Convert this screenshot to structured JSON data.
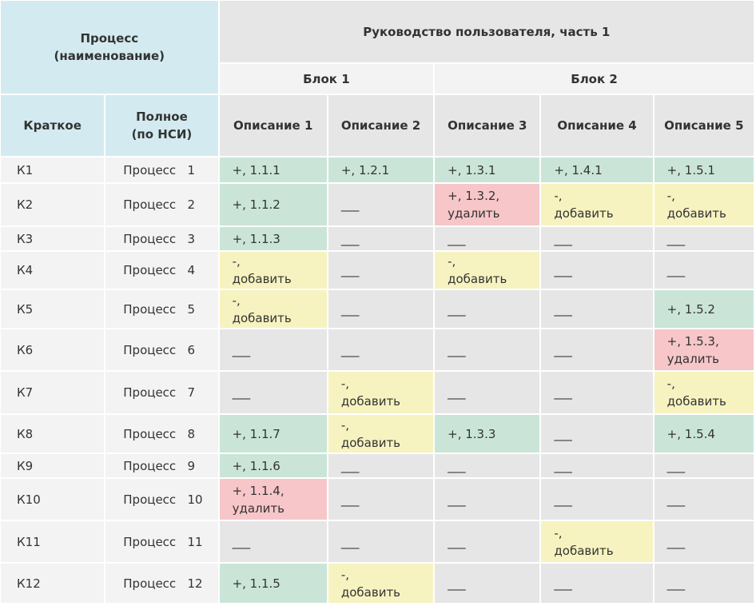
{
  "header": {
    "process": "Процесс\n(наименование)",
    "guide": "Руководство пользователя, часть 1",
    "blocks": [
      "Блок 1",
      "Блок 2"
    ],
    "short": "Краткое",
    "full": "Полное\n(по НСИ)",
    "descriptions": [
      "Описание 1",
      "Описание 2",
      "Описание 3",
      "Описание 4",
      "Описание 5"
    ]
  },
  "rows": [
    {
      "short": "К1",
      "full": "Процесс   1",
      "cells": [
        {
          "text": "+, 1.1.1",
          "color": "#cae5d8"
        },
        {
          "text": "+, 1.2.1",
          "color": "#cae5d8"
        },
        {
          "text": "+, 1.3.1",
          "color": "#cae5d8"
        },
        {
          "text": "+, 1.4.1",
          "color": "#cae5d8"
        },
        {
          "text": "+, 1.5.1",
          "color": "#cae5d8"
        }
      ]
    },
    {
      "short": "К2",
      "full": "Процесс   2",
      "cells": [
        {
          "text": "+, 1.1.2",
          "color": "#cae5d8"
        },
        {
          "text": "___",
          "color": "#e6e6e6"
        },
        {
          "text": "+, 1.3.2,\nудалить",
          "color": "#f6c6c9"
        },
        {
          "text": "-,\nдобавить",
          "color": "#f6f3c0"
        },
        {
          "text": "-,\nдобавить",
          "color": "#f6f3c0"
        }
      ]
    },
    {
      "short": "К3",
      "full": "Процесс   3",
      "cells": [
        {
          "text": "+, 1.1.3",
          "color": "#cae5d8"
        },
        {
          "text": "___",
          "color": "#e6e6e6"
        },
        {
          "text": "___",
          "color": "#e6e6e6"
        },
        {
          "text": "___",
          "color": "#e6e6e6"
        },
        {
          "text": "___",
          "color": "#e6e6e6"
        }
      ]
    },
    {
      "short": "К4",
      "full": "Процесс   4",
      "cells": [
        {
          "text": "-,\nдобавить",
          "color": "#f6f3c0"
        },
        {
          "text": "___",
          "color": "#e6e6e6"
        },
        {
          "text": "-,\nдобавить",
          "color": "#f6f3c0"
        },
        {
          "text": "___",
          "color": "#e6e6e6"
        },
        {
          "text": "___",
          "color": "#e6e6e6"
        }
      ]
    },
    {
      "short": "К5",
      "full": "Процесс   5",
      "cells": [
        {
          "text": "-,\nдобавить",
          "color": "#f6f3c0"
        },
        {
          "text": "___",
          "color": "#e6e6e6"
        },
        {
          "text": "___",
          "color": "#e6e6e6"
        },
        {
          "text": "___",
          "color": "#e6e6e6"
        },
        {
          "text": "+, 1.5.2",
          "color": "#cae5d8"
        }
      ]
    },
    {
      "short": "К6",
      "full": "Процесс   6",
      "cells": [
        {
          "text": "___",
          "color": "#e6e6e6"
        },
        {
          "text": "___",
          "color": "#e6e6e6"
        },
        {
          "text": "___",
          "color": "#e6e6e6"
        },
        {
          "text": "___",
          "color": "#e6e6e6"
        },
        {
          "text": "+, 1.5.3,\nудалить",
          "color": "#f6c6c9"
        }
      ]
    },
    {
      "short": "К7",
      "full": "Процесс   7",
      "cells": [
        {
          "text": "___",
          "color": "#e6e6e6"
        },
        {
          "text": "-,\nдобавить",
          "color": "#f6f3c0"
        },
        {
          "text": "___",
          "color": "#e6e6e6"
        },
        {
          "text": "___",
          "color": "#e6e6e6"
        },
        {
          "text": "-,\nдобавить",
          "color": "#f6f3c0"
        }
      ]
    },
    {
      "short": "К8",
      "full": "Процесс   8",
      "cells": [
        {
          "text": "+, 1.1.7",
          "color": "#cae5d8"
        },
        {
          "text": "-,\nдобавить",
          "color": "#f6f3c0"
        },
        {
          "text": "+, 1.3.3",
          "color": "#cae5d8"
        },
        {
          "text": "___",
          "color": "#e6e6e6"
        },
        {
          "text": "+, 1.5.4",
          "color": "#cae5d8"
        }
      ]
    },
    {
      "short": "К9",
      "full": "Процесс   9",
      "cells": [
        {
          "text": "+, 1.1.6",
          "color": "#cae5d8"
        },
        {
          "text": "___",
          "color": "#e6e6e6"
        },
        {
          "text": "___",
          "color": "#e6e6e6"
        },
        {
          "text": "___",
          "color": "#e6e6e6"
        },
        {
          "text": "___",
          "color": "#e6e6e6"
        }
      ]
    },
    {
      "short": "К10",
      "full": "Процесс   10",
      "cells": [
        {
          "text": "+, 1.1.4,\nудалить",
          "color": "#f6c6c9"
        },
        {
          "text": "___",
          "color": "#e6e6e6"
        },
        {
          "text": "___",
          "color": "#e6e6e6"
        },
        {
          "text": "___",
          "color": "#e6e6e6"
        },
        {
          "text": "___",
          "color": "#e6e6e6"
        }
      ]
    },
    {
      "short": "К11",
      "full": "Процесс   11",
      "cells": [
        {
          "text": "___",
          "color": "#e6e6e6"
        },
        {
          "text": "___",
          "color": "#e6e6e6"
        },
        {
          "text": "___",
          "color": "#e6e6e6"
        },
        {
          "text": "-,\nдобавить",
          "color": "#f6f3c0"
        },
        {
          "text": "___",
          "color": "#e6e6e6"
        }
      ]
    },
    {
      "short": "К12",
      "full": "Процесс   12",
      "cells": [
        {
          "text": "+, 1.1.5",
          "color": "#cae5d8"
        },
        {
          "text": "-,\nдобавить",
          "color": "#f6f3c0"
        },
        {
          "text": "___",
          "color": "#e6e6e6"
        },
        {
          "text": "___",
          "color": "#e6e6e6"
        },
        {
          "text": "___",
          "color": "#e6e6e6"
        }
      ]
    }
  ]
}
